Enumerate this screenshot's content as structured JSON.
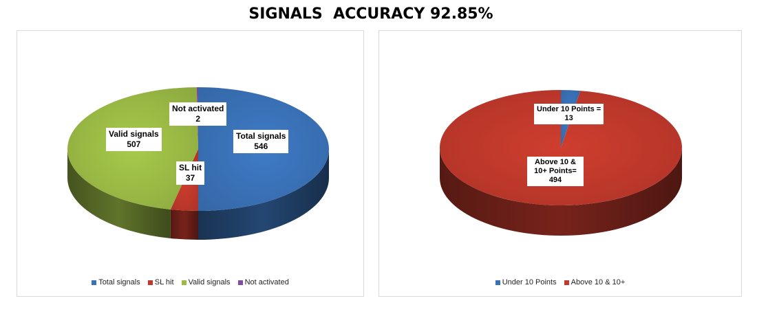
{
  "title": "SIGNALS  ACCURACY 92.85%",
  "chart_data": [
    {
      "type": "pie",
      "slices": [
        {
          "name": "Total signals",
          "value": 546,
          "label": "Total signals",
          "value_label": "546",
          "color": "#3a72b8"
        },
        {
          "name": "SL hit",
          "value": 37,
          "label": "SL hit",
          "value_label": "37",
          "color": "#c0392b"
        },
        {
          "name": "Valid signals",
          "value": 507,
          "label": "Valid signals",
          "value_label": "507",
          "color": "#9bbb45"
        },
        {
          "name": "Not activated",
          "value": 2,
          "label": "Not activated",
          "value_label": "2",
          "color": "#7f4ea3"
        }
      ],
      "legend": [
        "Total signals",
        "SL hit",
        "Valid signals",
        "Not activated"
      ],
      "legend_position": "bottom",
      "style": "3d"
    },
    {
      "type": "pie",
      "slices": [
        {
          "name": "Under 10 Points",
          "value": 13,
          "label": "Under 10 Points =",
          "value_label": "13",
          "color": "#3a72b8"
        },
        {
          "name": "Above 10 & 10+",
          "value": 494,
          "label": "Above 10 & 10+ Points=",
          "value_label": "494",
          "color": "#c0392b"
        }
      ],
      "legend": [
        "Under 10 Points",
        "Above 10 & 10+"
      ],
      "legend_position": "bottom",
      "style": "3d"
    }
  ]
}
